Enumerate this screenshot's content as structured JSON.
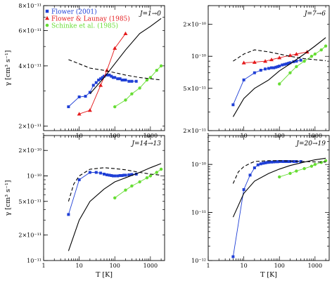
{
  "chart_data": [
    {
      "type": "line",
      "panel_title": "J=1→0",
      "x_scale": "log",
      "y_scale": "log",
      "xlim": [
        1,
        2500
      ],
      "ylim": [
        1.9e-11,
        8e-11
      ],
      "x_ticks": [
        1,
        10,
        100,
        1000
      ],
      "y_ticks": [
        {
          "v": 2e-11,
          "label": "2×10⁻¹¹"
        },
        {
          "v": 4e-11,
          "label": "4×10⁻¹¹"
        },
        {
          "v": 6e-11,
          "label": "6×10⁻¹¹"
        },
        {
          "v": 8e-11,
          "label": "8×10⁻¹¹"
        }
      ],
      "ylabel": "γ [cm³ s⁻¹]",
      "xlabel": "",
      "series": [
        {
          "name": "Flower (2001)",
          "color": "#1f3fd6",
          "marker": "square",
          "x": [
            5,
            10,
            15,
            20,
            25,
            30,
            35,
            40,
            45,
            50,
            60,
            70,
            80,
            90,
            100,
            120,
            140,
            160,
            180,
            200,
            250,
            300,
            400
          ],
          "y": [
            2.5e-11,
            2.8e-11,
            2.82e-11,
            2.95e-11,
            3.2e-11,
            3.3e-11,
            3.4e-11,
            3.45e-11,
            3.5e-11,
            3.55e-11,
            3.6e-11,
            3.6e-11,
            3.55e-11,
            3.5e-11,
            3.5e-11,
            3.45e-11,
            3.45e-11,
            3.4e-11,
            3.4e-11,
            3.4e-11,
            3.35e-11,
            3.35e-11,
            3.35e-11
          ]
        },
        {
          "name": "Flower & Launay (1985)",
          "color": "#e41a1c",
          "marker": "triangle",
          "x": [
            10,
            20,
            40,
            60,
            100,
            200
          ],
          "y": [
            2.3e-11,
            2.4e-11,
            3.2e-11,
            3.8e-11,
            4.9e-11,
            5.8e-11
          ]
        },
        {
          "name": "Schinke et al. (1985)",
          "color": "#66dd33",
          "marker": "circle",
          "x": [
            100,
            200,
            300,
            500,
            800,
            1000,
            1500,
            2000
          ],
          "y": [
            2.5e-11,
            2.7e-11,
            2.9e-11,
            3.1e-11,
            3.4e-11,
            3.5e-11,
            3.8e-11,
            4e-11
          ]
        },
        {
          "name": "",
          "color": "#000000",
          "style": "solid",
          "x": [
            20,
            50,
            100,
            200,
            500,
            1000,
            2000
          ],
          "y": [
            2.9e-11,
            3.5e-11,
            4.1e-11,
            4.8e-11,
            5.8e-11,
            6.3e-11,
            6.9e-11
          ]
        },
        {
          "name": "",
          "color": "#000000",
          "style": "dashed",
          "x": [
            5,
            10,
            20,
            50,
            100,
            200,
            500,
            1000,
            2000
          ],
          "y": [
            4.3e-11,
            4.1e-11,
            3.9e-11,
            3.8e-11,
            3.7e-11,
            3.6e-11,
            3.5e-11,
            3.45e-11,
            3.4e-11
          ]
        }
      ]
    },
    {
      "type": "line",
      "panel_title": "J=7→6",
      "x_scale": "log",
      "y_scale": "log",
      "xlim": [
        1,
        2500
      ],
      "ylim": [
        2e-11,
        3e-10
      ],
      "x_ticks": [
        1,
        10,
        100,
        1000
      ],
      "y_ticks": [
        {
          "v": 2e-11,
          "label": "2×10⁻¹¹"
        },
        {
          "v": 5e-11,
          "label": "5×10⁻¹¹"
        },
        {
          "v": 1e-10,
          "label": "10⁻¹⁰"
        },
        {
          "v": 2e-10,
          "label": "2×10⁻¹⁰"
        }
      ],
      "ylabel": "",
      "xlabel": "",
      "series": [
        {
          "name": "Flower (2001)",
          "color": "#1f3fd6",
          "marker": "square",
          "x": [
            5,
            10,
            20,
            30,
            40,
            50,
            60,
            70,
            80,
            90,
            100,
            120,
            140,
            160,
            180,
            200,
            250,
            300,
            400
          ],
          "y": [
            3.5e-11,
            6e-11,
            7e-11,
            7.4e-11,
            7.6e-11,
            7.7e-11,
            7.8e-11,
            7.8e-11,
            7.9e-11,
            8e-11,
            8.1e-11,
            8.3e-11,
            8.4e-11,
            8.5e-11,
            8.6e-11,
            8.7e-11,
            8.9e-11,
            9e-11,
            9.2e-11
          ]
        },
        {
          "name": "Flower & Launay (1985)",
          "color": "#e41a1c",
          "marker": "triangle",
          "x": [
            10,
            20,
            40,
            60,
            100,
            200,
            300,
            600
          ],
          "y": [
            8.7e-11,
            8.8e-11,
            9e-11,
            9.3e-11,
            9.7e-11,
            1.02e-10,
            1.05e-10,
            1.1e-10
          ]
        },
        {
          "name": "Schinke et al. (1985)",
          "color": "#66dd33",
          "marker": "circle",
          "x": [
            100,
            200,
            300,
            500,
            800,
            1000,
            1500,
            2000
          ],
          "y": [
            5.5e-11,
            7e-11,
            8e-11,
            9e-11,
            1e-10,
            1.05e-10,
            1.15e-10,
            1.25e-10
          ]
        },
        {
          "name": "",
          "color": "#000000",
          "style": "solid",
          "x": [
            5,
            10,
            20,
            50,
            100,
            200,
            500,
            1000,
            2000
          ],
          "y": [
            2.7e-11,
            4e-11,
            5e-11,
            6e-11,
            7.3e-11,
            8.5e-11,
            1.05e-10,
            1.25e-10,
            1.5e-10
          ]
        },
        {
          "name": "",
          "color": "#000000",
          "style": "dashed",
          "x": [
            5,
            10,
            20,
            50,
            100,
            200,
            500,
            1000,
            2000
          ],
          "y": [
            9e-11,
            1.05e-10,
            1.15e-10,
            1.1e-10,
            1.05e-10,
            1e-10,
            9.5e-11,
            9.3e-11,
            9.1e-11
          ]
        }
      ]
    },
    {
      "type": "line",
      "panel_title": "J=14→13",
      "x_scale": "log",
      "y_scale": "log",
      "xlim": [
        1,
        2500
      ],
      "ylim": [
        1e-11,
        3e-10
      ],
      "x_ticks": [
        1,
        10,
        100,
        1000
      ],
      "y_ticks": [
        {
          "v": 1e-11,
          "label": "10⁻¹¹"
        },
        {
          "v": 2e-11,
          "label": "2×10⁻¹¹"
        },
        {
          "v": 5e-11,
          "label": "5×10⁻¹¹"
        },
        {
          "v": 1e-10,
          "label": "10⁻¹⁰"
        },
        {
          "v": 2e-10,
          "label": "2×10⁻¹⁰"
        }
      ],
      "ylabel": "γ [cm³ s⁻¹]",
      "xlabel": "T [K]",
      "series": [
        {
          "name": "Flower (2001)",
          "color": "#1f3fd6",
          "marker": "square",
          "x": [
            5,
            10,
            20,
            30,
            40,
            50,
            60,
            70,
            80,
            90,
            100,
            120,
            140,
            160,
            180,
            200,
            250,
            300,
            400
          ],
          "y": [
            3.5e-11,
            9e-11,
            1.1e-10,
            1.1e-10,
            1.08e-10,
            1.05e-10,
            1.03e-10,
            1.02e-10,
            1.01e-10,
            1e-10,
            1e-10,
            1e-10,
            1.01e-10,
            1.01e-10,
            1.02e-10,
            1.02e-10,
            1.03e-10,
            1.04e-10,
            1.05e-10
          ]
        },
        {
          "name": "Schinke et al. (1985)",
          "color": "#66dd33",
          "marker": "circle",
          "x": [
            100,
            200,
            300,
            500,
            800,
            1000,
            1500,
            2000
          ],
          "y": [
            5.5e-11,
            6.8e-11,
            7.6e-11,
            8.5e-11,
            9.5e-11,
            1e-10,
            1.1e-10,
            1.2e-10
          ]
        },
        {
          "name": "",
          "color": "#000000",
          "style": "solid",
          "x": [
            5,
            10,
            20,
            50,
            100,
            200,
            500,
            1000,
            2000
          ],
          "y": [
            1.3e-11,
            3e-11,
            5e-11,
            7e-11,
            8.5e-11,
            9.5e-11,
            1.1e-10,
            1.25e-10,
            1.4e-10
          ]
        },
        {
          "name": "",
          "color": "#000000",
          "style": "dashed",
          "x": [
            5,
            7,
            10,
            20,
            50,
            100,
            200,
            500,
            1000,
            2000
          ],
          "y": [
            5e-11,
            8e-11,
            1e-10,
            1.2e-10,
            1.25e-10,
            1.22e-10,
            1.18e-10,
            1.1e-10,
            1.05e-10,
            1.02e-10
          ]
        }
      ]
    },
    {
      "type": "line",
      "panel_title": "J=20→19",
      "x_scale": "log",
      "y_scale": "log",
      "xlim": [
        1,
        2500
      ],
      "ylim": [
        1e-12,
        4e-10
      ],
      "x_ticks": [
        1,
        10,
        100,
        1000
      ],
      "y_ticks": [
        {
          "v": 1e-12,
          "label": "10⁻¹²"
        },
        {
          "v": 1e-11,
          "label": "10⁻¹¹"
        },
        {
          "v": 1e-10,
          "label": "10⁻¹⁰"
        }
      ],
      "ylabel": "",
      "xlabel": "T [K]",
      "series": [
        {
          "name": "Flower (2001)",
          "color": "#1f3fd6",
          "marker": "square",
          "x": [
            5,
            10,
            15,
            20,
            25,
            30,
            35,
            40,
            45,
            50,
            60,
            70,
            80,
            90,
            100,
            120,
            140,
            160,
            180,
            200,
            250,
            300,
            400
          ],
          "y": [
            1.2e-12,
            3e-11,
            6e-11,
            8.5e-11,
            9.8e-11,
            1.03e-10,
            1.06e-10,
            1.08e-10,
            1.1e-10,
            1.11e-10,
            1.12e-10,
            1.13e-10,
            1.14e-10,
            1.14e-10,
            1.15e-10,
            1.15e-10,
            1.15e-10,
            1.15e-10,
            1.15e-10,
            1.15e-10,
            1.15e-10,
            1.15e-10,
            1.15e-10
          ]
        },
        {
          "name": "Schinke et al. (1985)",
          "color": "#66dd33",
          "marker": "circle",
          "x": [
            100,
            200,
            300,
            500,
            800,
            1000,
            1500,
            2000
          ],
          "y": [
            5.5e-11,
            6.5e-11,
            7.3e-11,
            8.2e-11,
            9.2e-11,
            1e-10,
            1.1e-10,
            1.2e-10
          ]
        },
        {
          "name": "",
          "color": "#000000",
          "style": "solid",
          "x": [
            5,
            10,
            20,
            50,
            100,
            200,
            500,
            1000,
            2000
          ],
          "y": [
            8e-12,
            2.5e-11,
            4.5e-11,
            6.5e-11,
            8e-11,
            9.5e-11,
            1.12e-10,
            1.25e-10,
            1.35e-10
          ]
        },
        {
          "name": "",
          "color": "#000000",
          "style": "dashed",
          "x": [
            5,
            7,
            10,
            15,
            20,
            50,
            100,
            200,
            500,
            1000,
            2000
          ],
          "y": [
            4e-11,
            7e-11,
            9e-11,
            1.05e-10,
            1.15e-10,
            1.2e-10,
            1.2e-10,
            1.18e-10,
            1.15e-10,
            1.13e-10,
            1.12e-10
          ]
        }
      ]
    }
  ],
  "legend": {
    "placement": "top-left of first panel",
    "entries": [
      {
        "label": "Flower (2001)",
        "color": "#1f3fd6",
        "marker": "square"
      },
      {
        "label": "Flower & Launay (1985)",
        "color": "#e41a1c",
        "marker": "triangle"
      },
      {
        "label": "Schinke et al. (1985)",
        "color": "#66dd33",
        "marker": "circle"
      }
    ]
  }
}
